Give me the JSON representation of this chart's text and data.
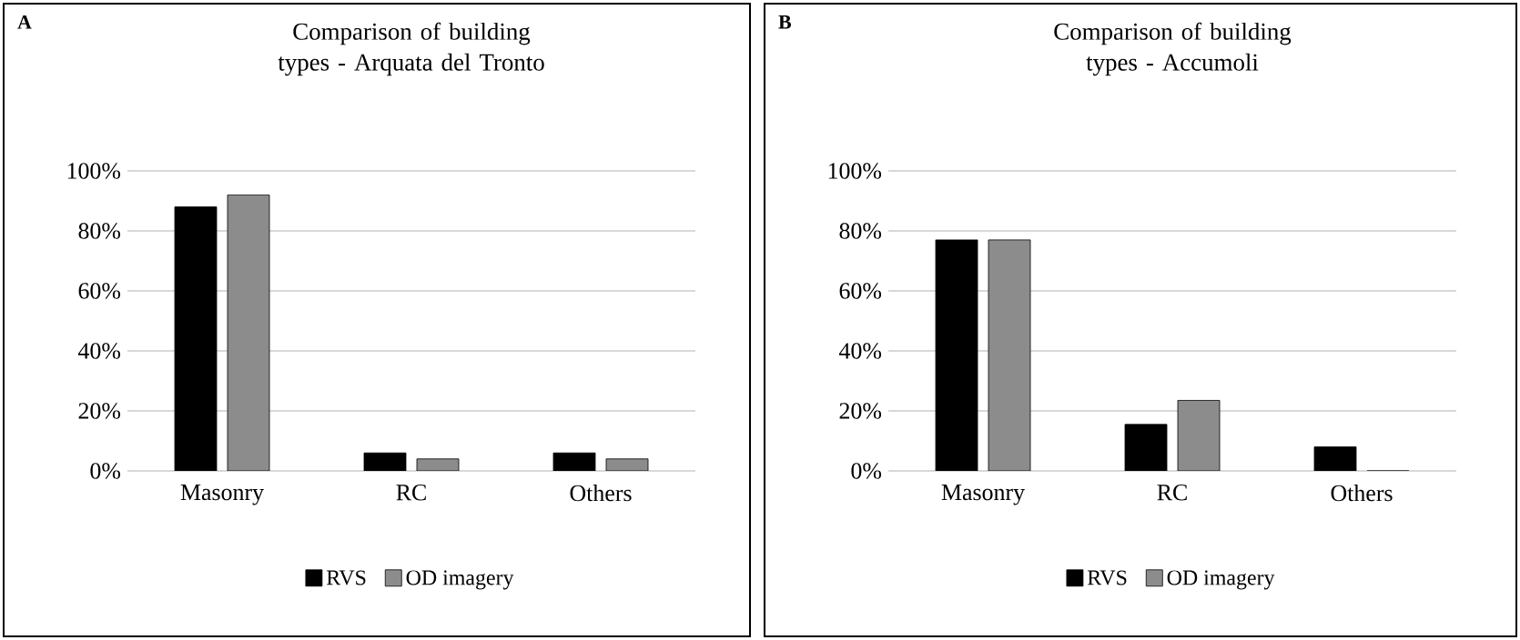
{
  "chart_data": [
    {
      "type": "bar",
      "title": "Comparison of building types - Arquata del Tronto",
      "annotations": [
        "A"
      ],
      "categories": [
        "Masonry",
        "RC",
        "Others"
      ],
      "series": [
        {
          "name": "RVS",
          "color": "#000000",
          "values": [
            88,
            6,
            6
          ]
        },
        {
          "name": "OD imagery",
          "color": "#8c8c8c",
          "values": [
            92,
            4,
            4
          ]
        }
      ],
      "ylim": [
        0,
        100
      ],
      "yticks": [
        {
          "value": 0,
          "label": "0%"
        },
        {
          "value": 20,
          "label": "20%"
        },
        {
          "value": 40,
          "label": "40%"
        },
        {
          "value": 60,
          "label": "60%"
        },
        {
          "value": 80,
          "label": "80%"
        },
        {
          "value": 100,
          "label": "100%"
        }
      ],
      "grid": "y",
      "legend": "bottom"
    },
    {
      "type": "bar",
      "title": "Comparison of building types - Accumoli",
      "annotations": [
        "B"
      ],
      "categories": [
        "Masonry",
        "RC",
        "Others"
      ],
      "series": [
        {
          "name": "RVS",
          "color": "#000000",
          "values": [
            77,
            15.5,
            8
          ]
        },
        {
          "name": "OD imagery",
          "color": "#8c8c8c",
          "values": [
            77,
            23.5,
            0
          ]
        }
      ],
      "ylim": [
        0,
        100
      ],
      "yticks": [
        {
          "value": 0,
          "label": "0%"
        },
        {
          "value": 20,
          "label": "20%"
        },
        {
          "value": 40,
          "label": "40%"
        },
        {
          "value": 60,
          "label": "60%"
        },
        {
          "value": 80,
          "label": "80%"
        },
        {
          "value": 100,
          "label": "100%"
        }
      ],
      "grid": "y",
      "legend": "bottom"
    }
  ]
}
